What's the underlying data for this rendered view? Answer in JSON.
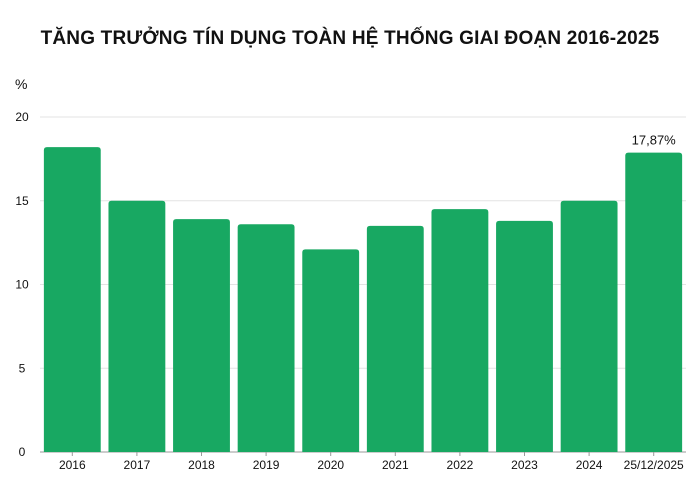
{
  "title": "TĂNG TRƯỞNG TÍN DỤNG TOÀN HỆ THỐNG GIAI ĐOẠN 2016-2025",
  "colors": {
    "bar": "#18a862",
    "grid": "#e3e3e3",
    "axis": "#9a9a9a"
  },
  "chart_data": {
    "type": "bar",
    "title": "TĂNG TRƯỞNG TÍN DỤNG TOÀN HỆ THỐNG GIAI ĐOẠN 2016-2025",
    "xlabel": "",
    "ylabel": "%",
    "ylim": [
      0,
      20
    ],
    "yticks": [
      "0",
      "5",
      "10",
      "15",
      "20"
    ],
    "grid": true,
    "categories": [
      "2016",
      "2017",
      "2018",
      "2019",
      "2020",
      "2021",
      "2022",
      "2023",
      "2024",
      "25/12/2025"
    ],
    "values": [
      18.2,
      15.0,
      13.9,
      13.6,
      12.1,
      13.5,
      14.5,
      13.8,
      15.0,
      17.87
    ],
    "data_labels": [
      {
        "category": "25/12/2025",
        "text": "17,87%"
      }
    ]
  }
}
